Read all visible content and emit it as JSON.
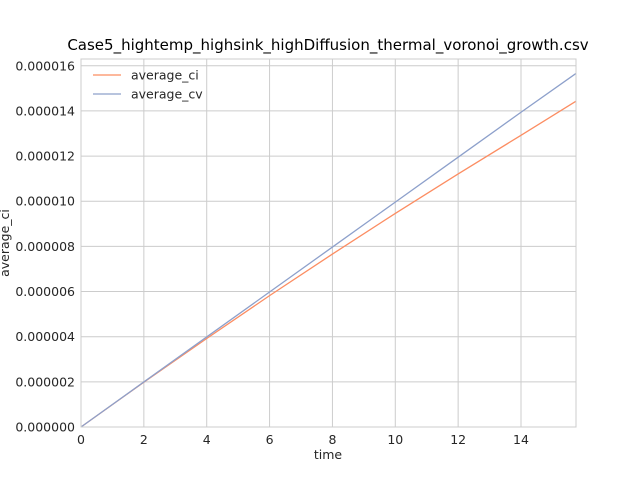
{
  "chart_data": {
    "type": "line",
    "title": "Case5_hightemp_highsink_highDiffusion_thermal_voronoi_growth.csv",
    "xlabel": "time",
    "ylabel": "average_ci",
    "xlim": [
      0,
      15.75
    ],
    "ylim": [
      0,
      1.63e-05
    ],
    "xticks": [
      0,
      2,
      4,
      6,
      8,
      10,
      12,
      14
    ],
    "xtick_labels": [
      "0",
      "2",
      "4",
      "6",
      "8",
      "10",
      "12",
      "14"
    ],
    "yticks": [
      0,
      2e-06,
      4e-06,
      6e-06,
      8e-06,
      1e-05,
      1.2e-05,
      1.4e-05,
      1.6e-05
    ],
    "ytick_labels": [
      "0.000000",
      "0.000002",
      "0.000004",
      "0.000006",
      "0.000008",
      "0.000010",
      "0.000012",
      "0.000014",
      "0.000016"
    ],
    "grid": true,
    "legend_position": "top-left",
    "series": [
      {
        "name": "average_ci",
        "color": "#fc8d62",
        "x": [
          0,
          2,
          4,
          6,
          8,
          10,
          12,
          14,
          15.75
        ],
        "y": [
          0,
          1.985e-06,
          3.92e-06,
          5.82e-06,
          7.66e-06,
          9.46e-06,
          1.121e-05,
          1.292e-05,
          1.443e-05
        ]
      },
      {
        "name": "average_cv",
        "color": "#8da0cb",
        "x": [
          0,
          2,
          4,
          6,
          8,
          10,
          12,
          14,
          15.75
        ],
        "y": [
          0,
          1.995e-06,
          3.99e-06,
          5.98e-06,
          7.97e-06,
          9.96e-06,
          1.195e-05,
          1.394e-05,
          1.566e-05
        ]
      }
    ]
  }
}
